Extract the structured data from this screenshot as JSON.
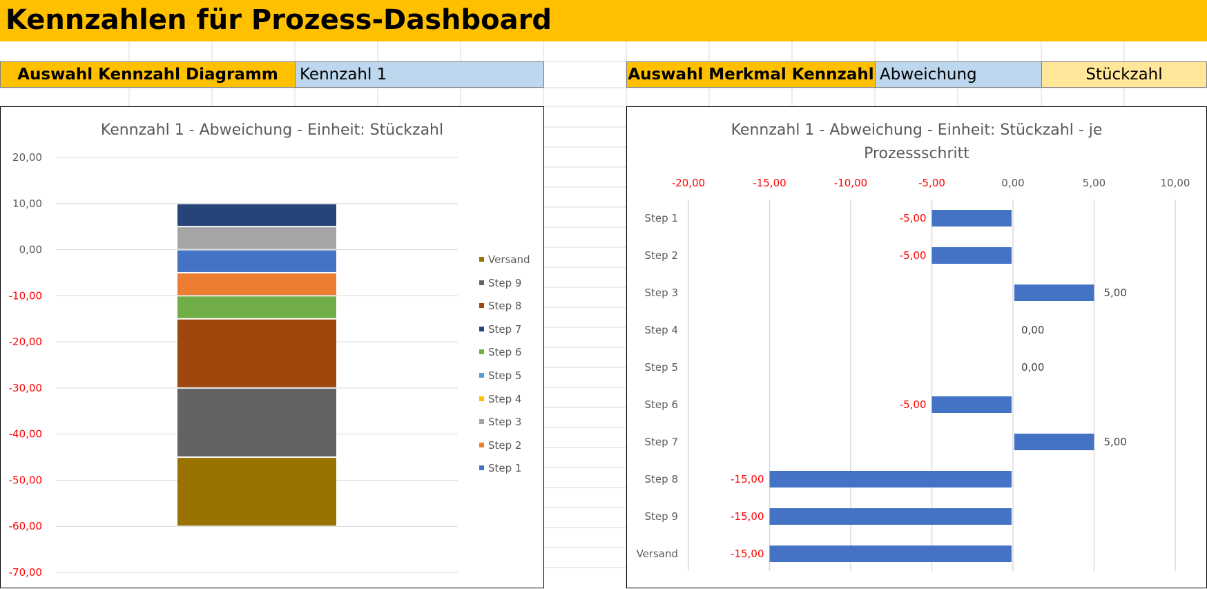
{
  "header": {
    "title": "Kennzahlen für Prozess-Dashboard"
  },
  "selectors": {
    "diagram_label": "Auswahl Kennzahl Diagramm",
    "diagram_value": "Kennzahl 1",
    "merkmal_label": "Auswahl Merkmal Kennzahl",
    "merkmal_value": "Abweichung",
    "unit_value": "Stückzahl"
  },
  "colors": {
    "header_bg": "#FFC000",
    "value_bg": "#BDD7EE",
    "unit_bg": "#FFE699",
    "negative_label": "#FF0000",
    "axis_label": "#595959",
    "bar_blue": "#4472C4"
  },
  "chart_data": [
    {
      "type": "bar",
      "stacked": true,
      "title": "Kennzahl 1 - Abweichung - Einheit: Stückzahl",
      "ylim": [
        -70,
        20
      ],
      "yticks": [
        "20,00",
        "10,00",
        "0,00",
        "-10,00",
        "-20,00",
        "-30,00",
        "-40,00",
        "-50,00",
        "-60,00",
        "-70,00"
      ],
      "ytick_values": [
        20,
        10,
        0,
        -10,
        -20,
        -30,
        -40,
        -50,
        -60,
        -70
      ],
      "grid": true,
      "legend_position": "right",
      "segments": [
        {
          "name": "Step 7",
          "from": 5,
          "to": 10,
          "color": "#264478"
        },
        {
          "name": "Step 3",
          "from": 0,
          "to": 5,
          "color": "#A5A5A5"
        },
        {
          "name": "Step 1",
          "from": -5,
          "to": 0,
          "color": "#4472C4"
        },
        {
          "name": "Step 2",
          "from": -10,
          "to": -5,
          "color": "#ED7D31"
        },
        {
          "name": "Step 6",
          "from": -15,
          "to": -10,
          "color": "#70AD47"
        },
        {
          "name": "Step 8",
          "from": -30,
          "to": -15,
          "color": "#9E480E"
        },
        {
          "name": "Step 9",
          "from": -45,
          "to": -30,
          "color": "#636363"
        },
        {
          "name": "Versand",
          "from": -60,
          "to": -45,
          "color": "#997300"
        }
      ],
      "legend": [
        {
          "name": "Versand",
          "color": "#997300"
        },
        {
          "name": "Step 9",
          "color": "#636363"
        },
        {
          "name": "Step 8",
          "color": "#9E480E"
        },
        {
          "name": "Step 7",
          "color": "#264478"
        },
        {
          "name": "Step 6",
          "color": "#70AD47"
        },
        {
          "name": "Step 5",
          "color": "#5B9BD5"
        },
        {
          "name": "Step 4",
          "color": "#FFC000"
        },
        {
          "name": "Step 3",
          "color": "#A5A5A5"
        },
        {
          "name": "Step 2",
          "color": "#ED7D31"
        },
        {
          "name": "Step 1",
          "color": "#4472C4"
        }
      ]
    },
    {
      "type": "bar",
      "orientation": "horizontal",
      "title": "Kennzahl 1 - Abweichung - Einheit: Stückzahl - je Prozessschritt",
      "xlim": [
        -20,
        10
      ],
      "xticks": [
        "-20,00",
        "-15,00",
        "-10,00",
        "-5,00",
        "0,00",
        "5,00",
        "10,00"
      ],
      "xtick_values": [
        -20,
        -15,
        -10,
        -5,
        0,
        5,
        10
      ],
      "grid": true,
      "categories": [
        "Step 1",
        "Step 2",
        "Step 3",
        "Step 4",
        "Step 5",
        "Step 6",
        "Step 7",
        "Step 8",
        "Step 9",
        "Versand"
      ],
      "values": [
        -5,
        -5,
        5,
        0,
        0,
        -5,
        5,
        -15,
        -15,
        -15
      ],
      "data_labels": [
        "-5,00",
        "-5,00",
        "5,00",
        "0,00",
        "0,00",
        "-5,00",
        "5,00",
        "-15,00",
        "-15,00",
        "-15,00"
      ],
      "color": "#4472C4"
    }
  ]
}
